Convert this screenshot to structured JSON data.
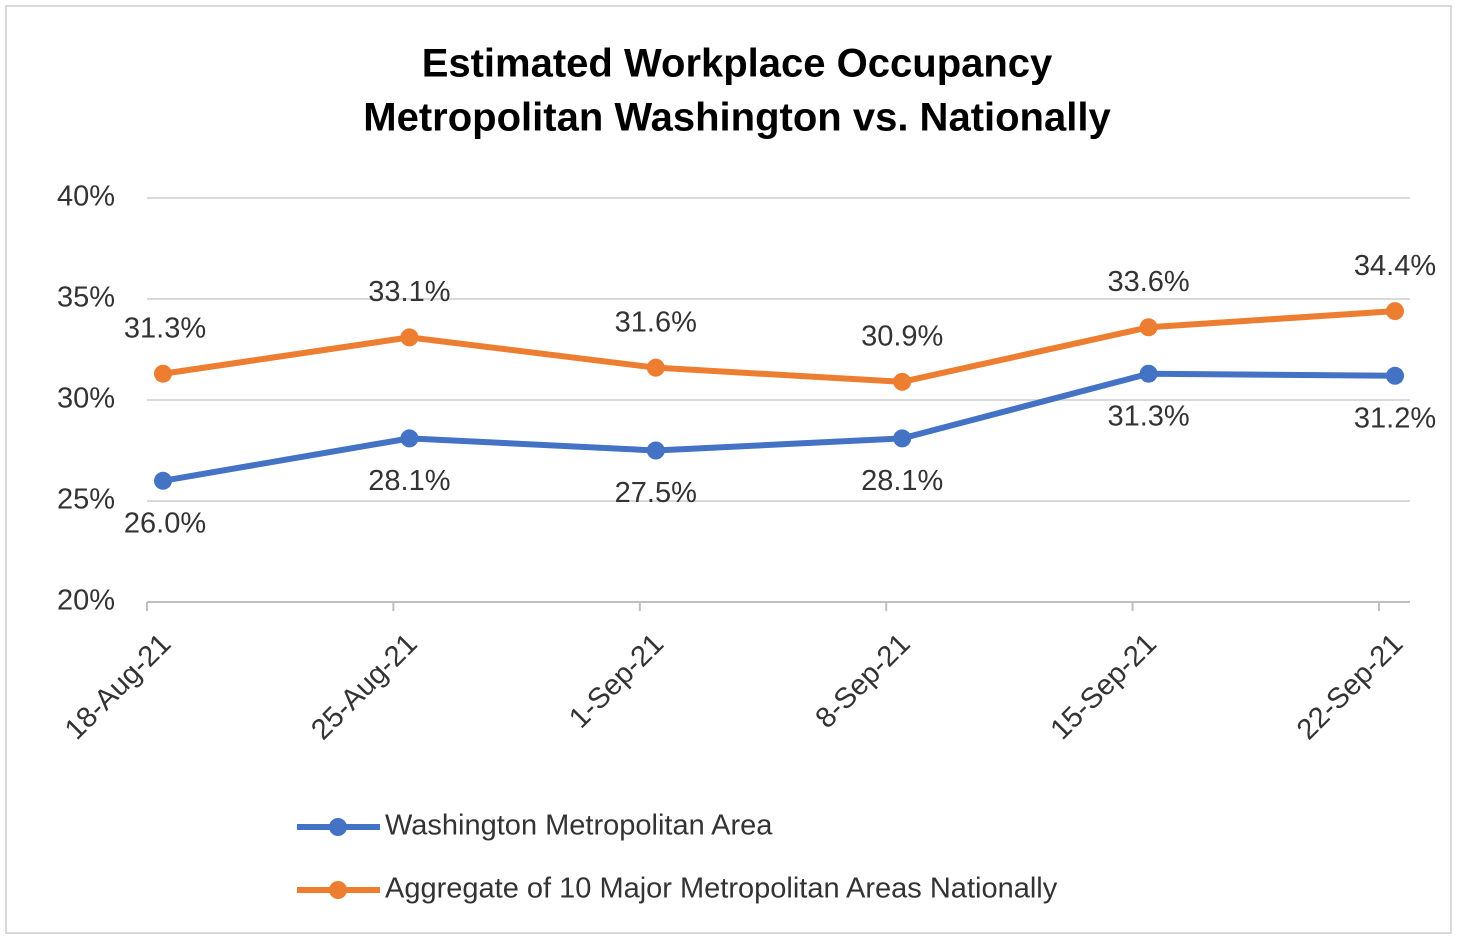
{
  "chart_data": {
    "type": "line",
    "title": "Estimated Workplace Occupancy",
    "subtitle": "Metropolitan Washington vs. Nationally",
    "categories": [
      "18-Aug-21",
      "25-Aug-21",
      "1-Sep-21",
      "8-Sep-21",
      "15-Sep-21",
      "22-Sep-21"
    ],
    "series": [
      {
        "name": "Washington Metropolitan Area",
        "color": "#4472c4",
        "values": [
          26.0,
          28.1,
          27.5,
          28.1,
          31.3,
          31.2
        ],
        "value_labels": [
          "26.0%",
          "28.1%",
          "27.5%",
          "28.1%",
          "31.3%",
          "31.2%"
        ]
      },
      {
        "name": "Aggregate of 10 Major Metropolitan Areas Nationally",
        "color": "#ed7d31",
        "values": [
          31.3,
          33.1,
          31.6,
          30.9,
          33.6,
          34.4
        ],
        "value_labels": [
          "31.3%",
          "33.1%",
          "31.6%",
          "30.9%",
          "33.6%",
          "34.4%"
        ]
      }
    ],
    "ylim": [
      20,
      40
    ],
    "yticks": [
      {
        "value": 20,
        "label": "20%"
      },
      {
        "value": 25,
        "label": "25%"
      },
      {
        "value": 30,
        "label": "30%"
      },
      {
        "value": 35,
        "label": "35%"
      },
      {
        "value": 40,
        "label": "40%"
      }
    ],
    "grid": true,
    "legend": "bottom"
  }
}
